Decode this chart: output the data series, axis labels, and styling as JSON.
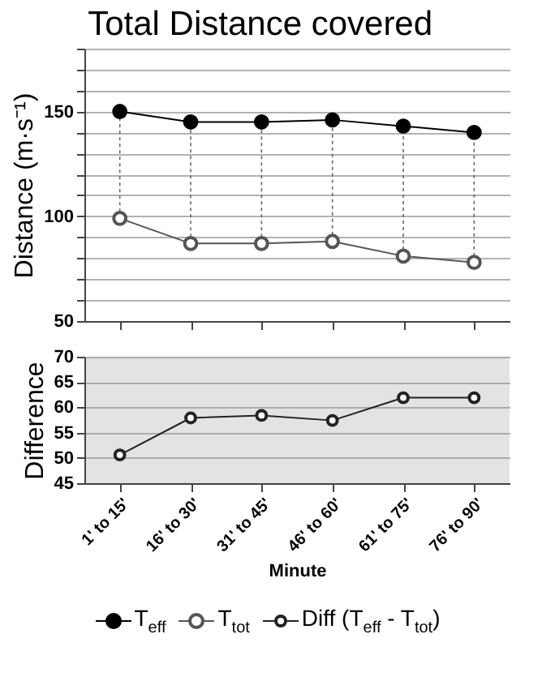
{
  "chart_data": [
    {
      "type": "line",
      "title": "Total Distance covered",
      "ylabel": "Distance (m·s⁻¹)",
      "categories": [
        "1' to 15'",
        "16' to 30'",
        "31' to 45'",
        "46' to 60'",
        "61' to 75'",
        "76' to 90'"
      ],
      "series": [
        {
          "name": "T$_{eff}$",
          "color": "#000000",
          "values": [
            150,
            145,
            145,
            146,
            143,
            140
          ]
        },
        {
          "name": "T$_{tot}$",
          "color": "#555555",
          "values": [
            99,
            87,
            87,
            88,
            81,
            78
          ]
        }
      ],
      "ylim": [
        50,
        180
      ],
      "yticks": [
        50,
        {
          "value": 60,
          "label": null
        },
        {
          "value": 70,
          "label": null
        },
        {
          "value": 80,
          "label": null
        },
        {
          "value": 90,
          "label": null
        },
        100,
        {
          "value": 110,
          "label": null
        },
        {
          "value": 120,
          "label": null
        },
        {
          "value": 130,
          "label": null
        },
        {
          "value": 140,
          "label": null
        },
        150,
        {
          "value": 160,
          "label": null
        },
        {
          "value": 170,
          "label": null
        },
        {
          "value": 180,
          "label": null
        }
      ],
      "grid": "y",
      "marker": "circle",
      "legend": "bottom",
      "tick_labels": "y"
    },
    {
      "type": "line",
      "xlabel": "Minute",
      "ylabel": "Difference",
      "categories": [
        "1' to 15'",
        "16' to 30'",
        "31' to 45'",
        "46' to 60'",
        "61' to 75'",
        "76' to 90'"
      ],
      "series": [
        {
          "name": "Diff (T$_{eff}$ - T$_{tot}$)",
          "color": "#222222",
          "values": [
            50.6,
            57.9,
            58.4,
            57.4,
            61.9,
            61.9
          ]
        }
      ],
      "ylim": [
        45,
        70
      ],
      "yticks": [
        45,
        50,
        55,
        60,
        65,
        70
      ],
      "grid": "y",
      "marker": "circle",
      "legend": "bottom"
    }
  ]
}
